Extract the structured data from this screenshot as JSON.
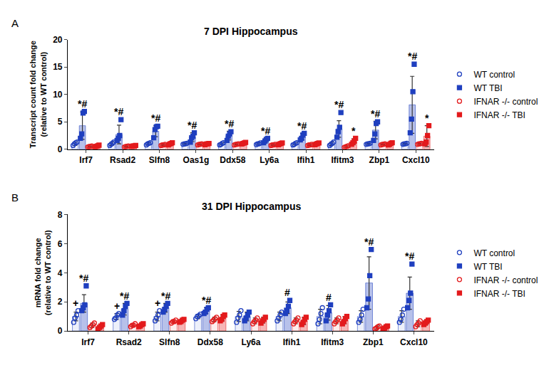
{
  "chart_data": [
    {
      "type": "bar",
      "panel": "A",
      "title": "7 DPI Hippocampus",
      "y_label": "Transcript count fold change\n(relative to WT control)",
      "categories": [
        "Irf7",
        "Rsad2",
        "Slfn8",
        "Oas1g",
        "Ddx58",
        "Ly6a",
        "Ifih1",
        "Ifitm3",
        "Zbp1",
        "Cxcl10"
      ],
      "ylim": [
        0,
        20
      ],
      "yticks": [
        0,
        5,
        10,
        15,
        20
      ],
      "grid": false,
      "series": [
        {
          "name": "WT control",
          "color": "#1f3fbf",
          "marker": "circle-open",
          "values": [
            1.0,
            1.0,
            1.0,
            1.0,
            1.0,
            1.0,
            1.0,
            1.0,
            1.0,
            1.0
          ],
          "errors": [
            0.3,
            0.3,
            0.2,
            0.1,
            0.2,
            0.15,
            0.2,
            0.3,
            0.1,
            0.1
          ],
          "points": [
            [
              0.7,
              1.0,
              1.2,
              1.3
            ],
            [
              0.7,
              0.9,
              1.1,
              1.3
            ],
            [
              0.8,
              1.0,
              1.1,
              1.2
            ],
            [
              0.9,
              1.0,
              1.0,
              1.1
            ],
            [
              0.8,
              0.9,
              1.1,
              1.2
            ],
            [
              0.85,
              1.0,
              1.0,
              1.15
            ],
            [
              0.8,
              0.9,
              1.1,
              1.2
            ],
            [
              0.7,
              0.9,
              1.1,
              1.3
            ],
            [
              0.9,
              1.0,
              1.0,
              1.1
            ],
            [
              0.9,
              1.0,
              1.0,
              1.1
            ]
          ]
        },
        {
          "name": "WT TBI",
          "color": "#1f3fbf",
          "marker": "square",
          "values": [
            4.3,
            2.7,
            3.3,
            2.2,
            2.5,
            1.6,
            2.3,
            3.7,
            3.5,
            8.1
          ],
          "errors": [
            2.5,
            1.7,
            1.0,
            0.8,
            0.8,
            0.35,
            0.6,
            1.5,
            1.6,
            5.2
          ],
          "points": [
            [
              2.0,
              2.8,
              6.6,
              6.9
            ],
            [
              1.6,
              2.0,
              2.5,
              5.4
            ],
            [
              2.1,
              3.6,
              4.1,
              4.2
            ],
            [
              1.3,
              2.1,
              2.4,
              3.0
            ],
            [
              1.6,
              2.4,
              2.8,
              3.2
            ],
            [
              1.2,
              1.5,
              1.8,
              2.0
            ],
            [
              1.7,
              2.0,
              2.6,
              2.9
            ],
            [
              2.2,
              3.2,
              4.0,
              6.7
            ],
            [
              1.6,
              2.8,
              4.7,
              5.0
            ],
            [
              3.0,
              5.5,
              10.5,
              15.5
            ]
          ]
        },
        {
          "name": "IFNAR -/- control",
          "color": "#e31a1c",
          "marker": "circle-open",
          "values": [
            0.5,
            0.5,
            0.8,
            0.9,
            0.9,
            0.8,
            0.8,
            0.5,
            0.9,
            1.0
          ],
          "errors": [
            0.1,
            0.1,
            0.1,
            0.1,
            0.1,
            0.1,
            0.1,
            0.15,
            0.1,
            0.1
          ],
          "points": [
            [
              0.4,
              0.5,
              0.5,
              0.6
            ],
            [
              0.4,
              0.5,
              0.55,
              0.6
            ],
            [
              0.7,
              0.8,
              0.8,
              0.9
            ],
            [
              0.8,
              0.9,
              0.9,
              1.0
            ],
            [
              0.8,
              0.9,
              0.9,
              1.0
            ],
            [
              0.7,
              0.8,
              0.8,
              0.9
            ],
            [
              0.7,
              0.8,
              0.8,
              0.9
            ],
            [
              0.35,
              0.45,
              0.55,
              0.65
            ],
            [
              0.8,
              0.9,
              0.9,
              1.0
            ],
            [
              0.9,
              1.0,
              1.0,
              1.1
            ]
          ]
        },
        {
          "name": "IFNAR -/- TBI",
          "color": "#e31a1c",
          "marker": "square",
          "values": [
            0.6,
            0.6,
            1.0,
            0.95,
            1.1,
            1.0,
            1.0,
            1.4,
            1.0,
            2.4
          ],
          "errors": [
            0.15,
            0.1,
            0.2,
            0.1,
            0.15,
            0.15,
            0.15,
            0.5,
            0.2,
            1.9
          ],
          "points": [
            [
              0.45,
              0.55,
              0.65,
              0.75
            ],
            [
              0.5,
              0.6,
              0.6,
              0.7
            ],
            [
              0.8,
              0.95,
              1.05,
              1.2
            ],
            [
              0.85,
              0.95,
              1.0,
              1.05
            ],
            [
              0.95,
              1.05,
              1.15,
              1.25
            ],
            [
              0.85,
              0.95,
              1.05,
              1.15
            ],
            [
              0.85,
              0.95,
              1.05,
              1.15
            ],
            [
              0.9,
              1.2,
              1.5,
              2.0
            ],
            [
              0.8,
              0.9,
              1.1,
              1.2
            ],
            [
              1.0,
              1.3,
              2.5,
              4.3
            ]
          ]
        }
      ],
      "annotations": [
        {
          "category": "Irf7",
          "series": "WT TBI",
          "text": "*#"
        },
        {
          "category": "Rsad2",
          "series": "WT TBI",
          "text": "*#"
        },
        {
          "category": "Slfn8",
          "series": "WT TBI",
          "text": "*#"
        },
        {
          "category": "Oas1g",
          "series": "WT TBI",
          "text": "*#"
        },
        {
          "category": "Ddx58",
          "series": "WT TBI",
          "text": "*#"
        },
        {
          "category": "Ly6a",
          "series": "WT TBI",
          "text": "*#"
        },
        {
          "category": "Ifih1",
          "series": "WT TBI",
          "text": "*#"
        },
        {
          "category": "Ifitm3",
          "series": "WT TBI",
          "text": "*#"
        },
        {
          "category": "Zbp1",
          "series": "WT TBI",
          "text": "*#"
        },
        {
          "category": "Cxcl10",
          "series": "WT TBI",
          "text": "*#"
        },
        {
          "category": "Ifitm3",
          "series": "IFNAR -/- TBI",
          "text": "*"
        },
        {
          "category": "Cxcl10",
          "series": "IFNAR -/- TBI",
          "text": "*"
        }
      ]
    },
    {
      "type": "bar",
      "panel": "B",
      "title": "31 DPI Hippocampus",
      "y_label": "mRNA fold change\n(relative to WT control)",
      "categories": [
        "Irf7",
        "Rsad2",
        "Slfn8",
        "Ddx58",
        "Ly6a",
        "Ifih1",
        "Ifitm3",
        "Zbp1",
        "Cxcl10"
      ],
      "ylim": [
        0,
        8
      ],
      "yticks": [
        0,
        2,
        4,
        6,
        8
      ],
      "grid": false,
      "series": [
        {
          "name": "WT control",
          "color": "#1f3fbf",
          "marker": "circle-open",
          "values": [
            1.0,
            1.0,
            1.0,
            1.0,
            1.0,
            1.0,
            1.0,
            1.0,
            1.0
          ],
          "errors": [
            0.3,
            0.2,
            0.3,
            0.15,
            0.35,
            0.3,
            0.5,
            0.4,
            0.4
          ],
          "points": [
            [
              0.6,
              0.9,
              1.1,
              1.4
            ],
            [
              0.8,
              0.9,
              1.1,
              1.2
            ],
            [
              0.7,
              0.9,
              1.1,
              1.4
            ],
            [
              0.85,
              1.0,
              1.05,
              1.15
            ],
            [
              0.6,
              0.9,
              1.1,
              1.4
            ],
            [
              0.7,
              0.9,
              1.1,
              1.3
            ],
            [
              0.5,
              0.8,
              1.2,
              1.6
            ],
            [
              0.6,
              0.8,
              1.1,
              1.5
            ],
            [
              0.6,
              0.8,
              1.1,
              1.5
            ]
          ]
        },
        {
          "name": "WT TBI",
          "color": "#1f3fbf",
          "marker": "square",
          "values": [
            1.9,
            1.5,
            1.6,
            1.4,
            1.0,
            1.6,
            1.25,
            3.3,
            2.6
          ],
          "errors": [
            0.6,
            0.4,
            0.3,
            0.2,
            0.3,
            0.4,
            0.5,
            1.8,
            1.1
          ],
          "points": [
            [
              1.4,
              1.6,
              1.8,
              3.1
            ],
            [
              1.1,
              1.4,
              1.7,
              1.9
            ],
            [
              1.3,
              1.5,
              1.7,
              1.9
            ],
            [
              1.2,
              1.3,
              1.5,
              1.6
            ],
            [
              0.7,
              0.9,
              1.1,
              1.3
            ],
            [
              1.2,
              1.4,
              1.7,
              2.1
            ],
            [
              0.7,
              1.1,
              1.4,
              1.8
            ],
            [
              1.6,
              2.2,
              3.8,
              5.6
            ],
            [
              1.6,
              2.1,
              2.6,
              4.6
            ]
          ]
        },
        {
          "name": "IFNAR -/- control",
          "color": "#e31a1c",
          "marker": "circle-open",
          "values": [
            0.4,
            0.4,
            0.65,
            0.8,
            0.7,
            0.7,
            0.7,
            0.25,
            0.5
          ],
          "errors": [
            0.15,
            0.1,
            0.1,
            0.15,
            0.2,
            0.2,
            0.2,
            0.1,
            0.2
          ],
          "points": [
            [
              0.25,
              0.35,
              0.45,
              0.55
            ],
            [
              0.3,
              0.4,
              0.4,
              0.5
            ],
            [
              0.55,
              0.65,
              0.65,
              0.75
            ],
            [
              0.65,
              0.75,
              0.85,
              0.95
            ],
            [
              0.5,
              0.65,
              0.75,
              0.9
            ],
            [
              0.5,
              0.65,
              0.75,
              0.9
            ],
            [
              0.5,
              0.65,
              0.75,
              0.9
            ],
            [
              0.15,
              0.2,
              0.3,
              0.35
            ],
            [
              0.3,
              0.45,
              0.55,
              0.7
            ]
          ]
        },
        {
          "name": "IFNAR -/- TBI",
          "color": "#e31a1c",
          "marker": "square",
          "values": [
            0.3,
            0.4,
            0.7,
            0.9,
            0.75,
            0.7,
            0.75,
            0.25,
            0.6
          ],
          "errors": [
            0.15,
            0.1,
            0.1,
            0.2,
            0.2,
            0.25,
            0.25,
            0.1,
            0.15
          ],
          "points": [
            [
              0.15,
              0.25,
              0.35,
              0.45
            ],
            [
              0.3,
              0.35,
              0.45,
              0.5
            ],
            [
              0.6,
              0.65,
              0.75,
              0.8
            ],
            [
              0.7,
              0.8,
              1.0,
              1.1
            ],
            [
              0.55,
              0.7,
              0.8,
              0.95
            ],
            [
              0.45,
              0.6,
              0.8,
              0.95
            ],
            [
              0.5,
              0.65,
              0.85,
              1.0
            ],
            [
              0.15,
              0.2,
              0.3,
              0.35
            ],
            [
              0.45,
              0.55,
              0.65,
              0.75
            ]
          ]
        }
      ],
      "annotations": [
        {
          "category": "Irf7",
          "series": "WT control",
          "text": "+"
        },
        {
          "category": "Rsad2",
          "series": "WT control",
          "text": "+"
        },
        {
          "category": "Slfn8",
          "series": "WT control",
          "text": "+"
        },
        {
          "category": "Irf7",
          "series": "WT TBI",
          "text": "*#"
        },
        {
          "category": "Rsad2",
          "series": "WT TBI",
          "text": "*#"
        },
        {
          "category": "Slfn8",
          "series": "WT TBI",
          "text": "*#"
        },
        {
          "category": "Ddx58",
          "series": "WT TBI",
          "text": "*#"
        },
        {
          "category": "Ifih1",
          "series": "WT TBI",
          "text": "#"
        },
        {
          "category": "Ifitm3",
          "series": "WT TBI",
          "text": "#"
        },
        {
          "category": "Zbp1",
          "series": "WT TBI",
          "text": "*#"
        },
        {
          "category": "Cxcl10",
          "series": "WT TBI",
          "text": "*#"
        }
      ]
    }
  ]
}
